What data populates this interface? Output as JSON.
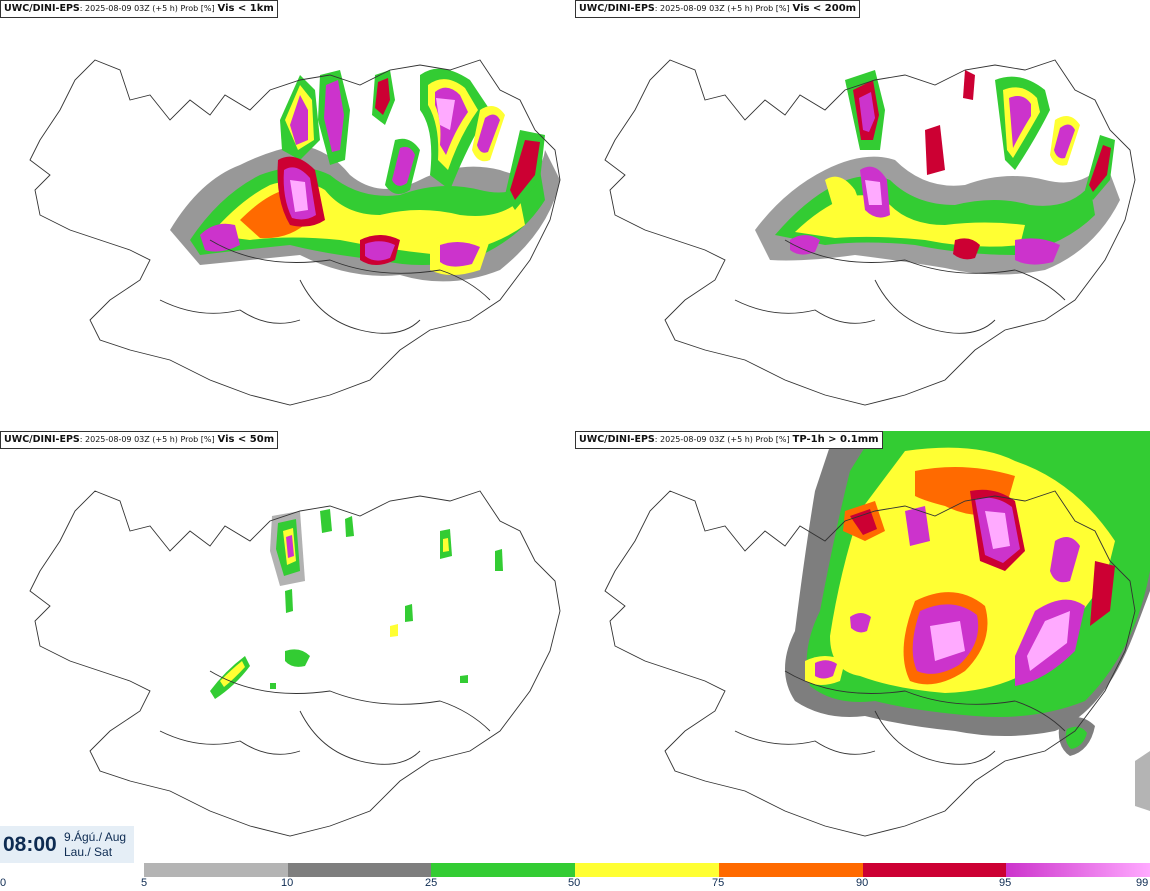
{
  "colors": {
    "c5_10": "#b4b4b4",
    "c10_25": "#7e7e7e",
    "c25_50": "#33cc33",
    "c50_75": "#ffff33",
    "c75_90": "#ff6a00",
    "c90_95": "#cc0033",
    "c95_99": "#cc33cc",
    "c99": "#ffaaff",
    "coast": "#333333",
    "time_bg": "#e5eef6",
    "time_text": "#0d2b52"
  },
  "panels": [
    {
      "model": "UWC/DINI-EPS",
      "meta": "2025-08-09 03Z (+5 h) Prob [%]",
      "variable": "Vis < 1km",
      "icon": "iceland-map"
    },
    {
      "model": "UWC/DINI-EPS",
      "meta": "2025-08-09 03Z (+5 h) Prob [%]",
      "variable": "Vis < 200m",
      "icon": "iceland-map"
    },
    {
      "model": "UWC/DINI-EPS",
      "meta": "2025-08-09 03Z (+5 h) Prob [%]",
      "variable": "Vis < 50m",
      "icon": "iceland-map"
    },
    {
      "model": "UWC/DINI-EPS",
      "meta": "2025-08-09 03Z (+5 h) Prob [%]",
      "variable": "TP-1h > 0.1mm",
      "icon": "iceland-map"
    }
  ],
  "time": {
    "clock": "08:00",
    "date": "9.Ágú./ Aug",
    "weekday": "Lau./ Sat"
  },
  "colorbar": {
    "ticks": [
      "0",
      "5",
      "10",
      "25",
      "50",
      "75",
      "90",
      "95",
      "99"
    ]
  }
}
